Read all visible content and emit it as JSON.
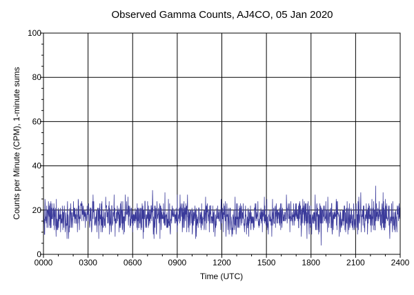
{
  "chart_data": {
    "type": "line",
    "title": "Observed Gamma Counts, AJ4CO, 05 Jan 2020",
    "xlabel": "Time (UTC)",
    "ylabel": "Counts per Minute (CPM), 1-minute sums",
    "xlim": [
      0,
      1440
    ],
    "ylim": [
      0,
      100
    ],
    "x_ticks": [
      {
        "value": 0,
        "label": "0000"
      },
      {
        "value": 180,
        "label": "0300"
      },
      {
        "value": 360,
        "label": "0600"
      },
      {
        "value": 540,
        "label": "0900"
      },
      {
        "value": 720,
        "label": "1200"
      },
      {
        "value": 900,
        "label": "1500"
      },
      {
        "value": 1080,
        "label": "1800"
      },
      {
        "value": 1260,
        "label": "2100"
      },
      {
        "value": 1440,
        "label": "2400"
      }
    ],
    "y_ticks": [
      0,
      20,
      40,
      60,
      80,
      100
    ],
    "grid": true,
    "series": [
      {
        "color": "#3a3a9a",
        "sampling": "1-minute sums, 1440 samples across the day",
        "mean": 17,
        "min": 4,
        "max": 31,
        "notable_points": [
          {
            "x": 5,
            "y": 9
          },
          {
            "x": 330,
            "y": 27
          },
          {
            "x": 440,
            "y": 29
          },
          {
            "x": 490,
            "y": 28
          },
          {
            "x": 540,
            "y": 27
          },
          {
            "x": 1040,
            "y": 8
          },
          {
            "x": 1120,
            "y": 4
          },
          {
            "x": 1165,
            "y": 9
          },
          {
            "x": 1280,
            "y": 28
          },
          {
            "x": 1340,
            "y": 31
          },
          {
            "x": 1370,
            "y": 28
          }
        ]
      }
    ]
  }
}
